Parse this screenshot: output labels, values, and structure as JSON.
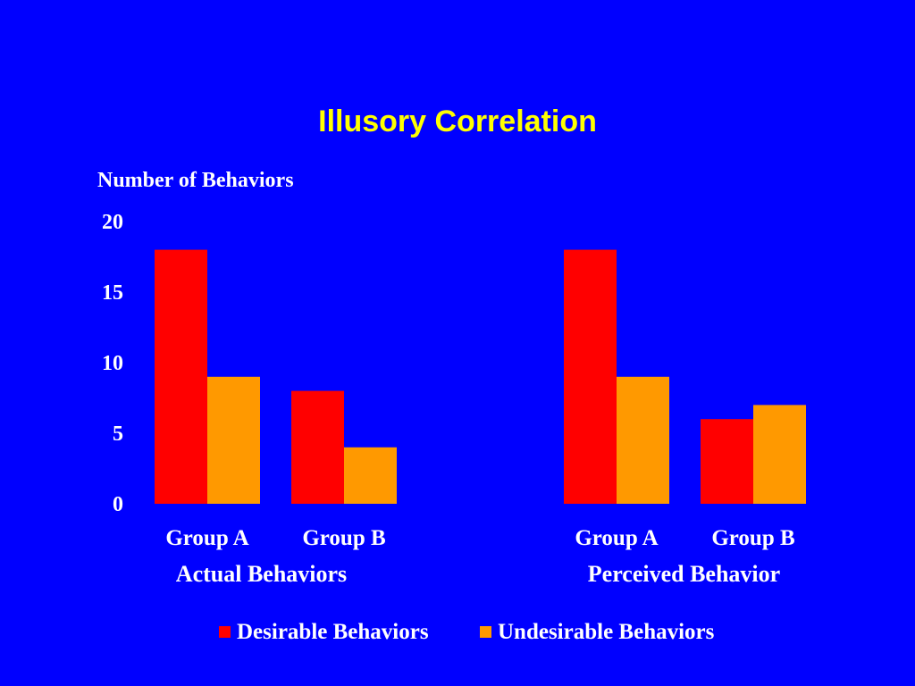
{
  "chart_data": {
    "type": "bar",
    "title": "Illusory Correlation",
    "ylabel": "Number of Behaviors",
    "xlabel": "",
    "ylim": [
      0,
      20
    ],
    "yticks": [
      0,
      5,
      10,
      15,
      20
    ],
    "groups": [
      {
        "name": "Actual Behaviors",
        "categories": [
          "Group A",
          "Group B"
        ],
        "series": [
          {
            "name": "Desirable Behaviors",
            "values": [
              18,
              8
            ]
          },
          {
            "name": "Undesirable Behaviors",
            "values": [
              9,
              4
            ]
          }
        ]
      },
      {
        "name": "Perceived Behavior",
        "categories": [
          "Group A",
          "Group B"
        ],
        "series": [
          {
            "name": "Desirable Behaviors",
            "values": [
              18,
              6
            ]
          },
          {
            "name": "Undesirable Behaviors",
            "values": [
              9,
              7
            ]
          }
        ]
      }
    ],
    "legend": {
      "placement": "bottom",
      "entries": [
        "Desirable Behaviors",
        "Undesirable Behaviors"
      ]
    },
    "colors": {
      "background": "#0000FF",
      "title": "#FFFF00",
      "text": "#FFFFFF",
      "desirable": "#FF0000",
      "undesirable": "#FF9900"
    },
    "grid": false
  }
}
